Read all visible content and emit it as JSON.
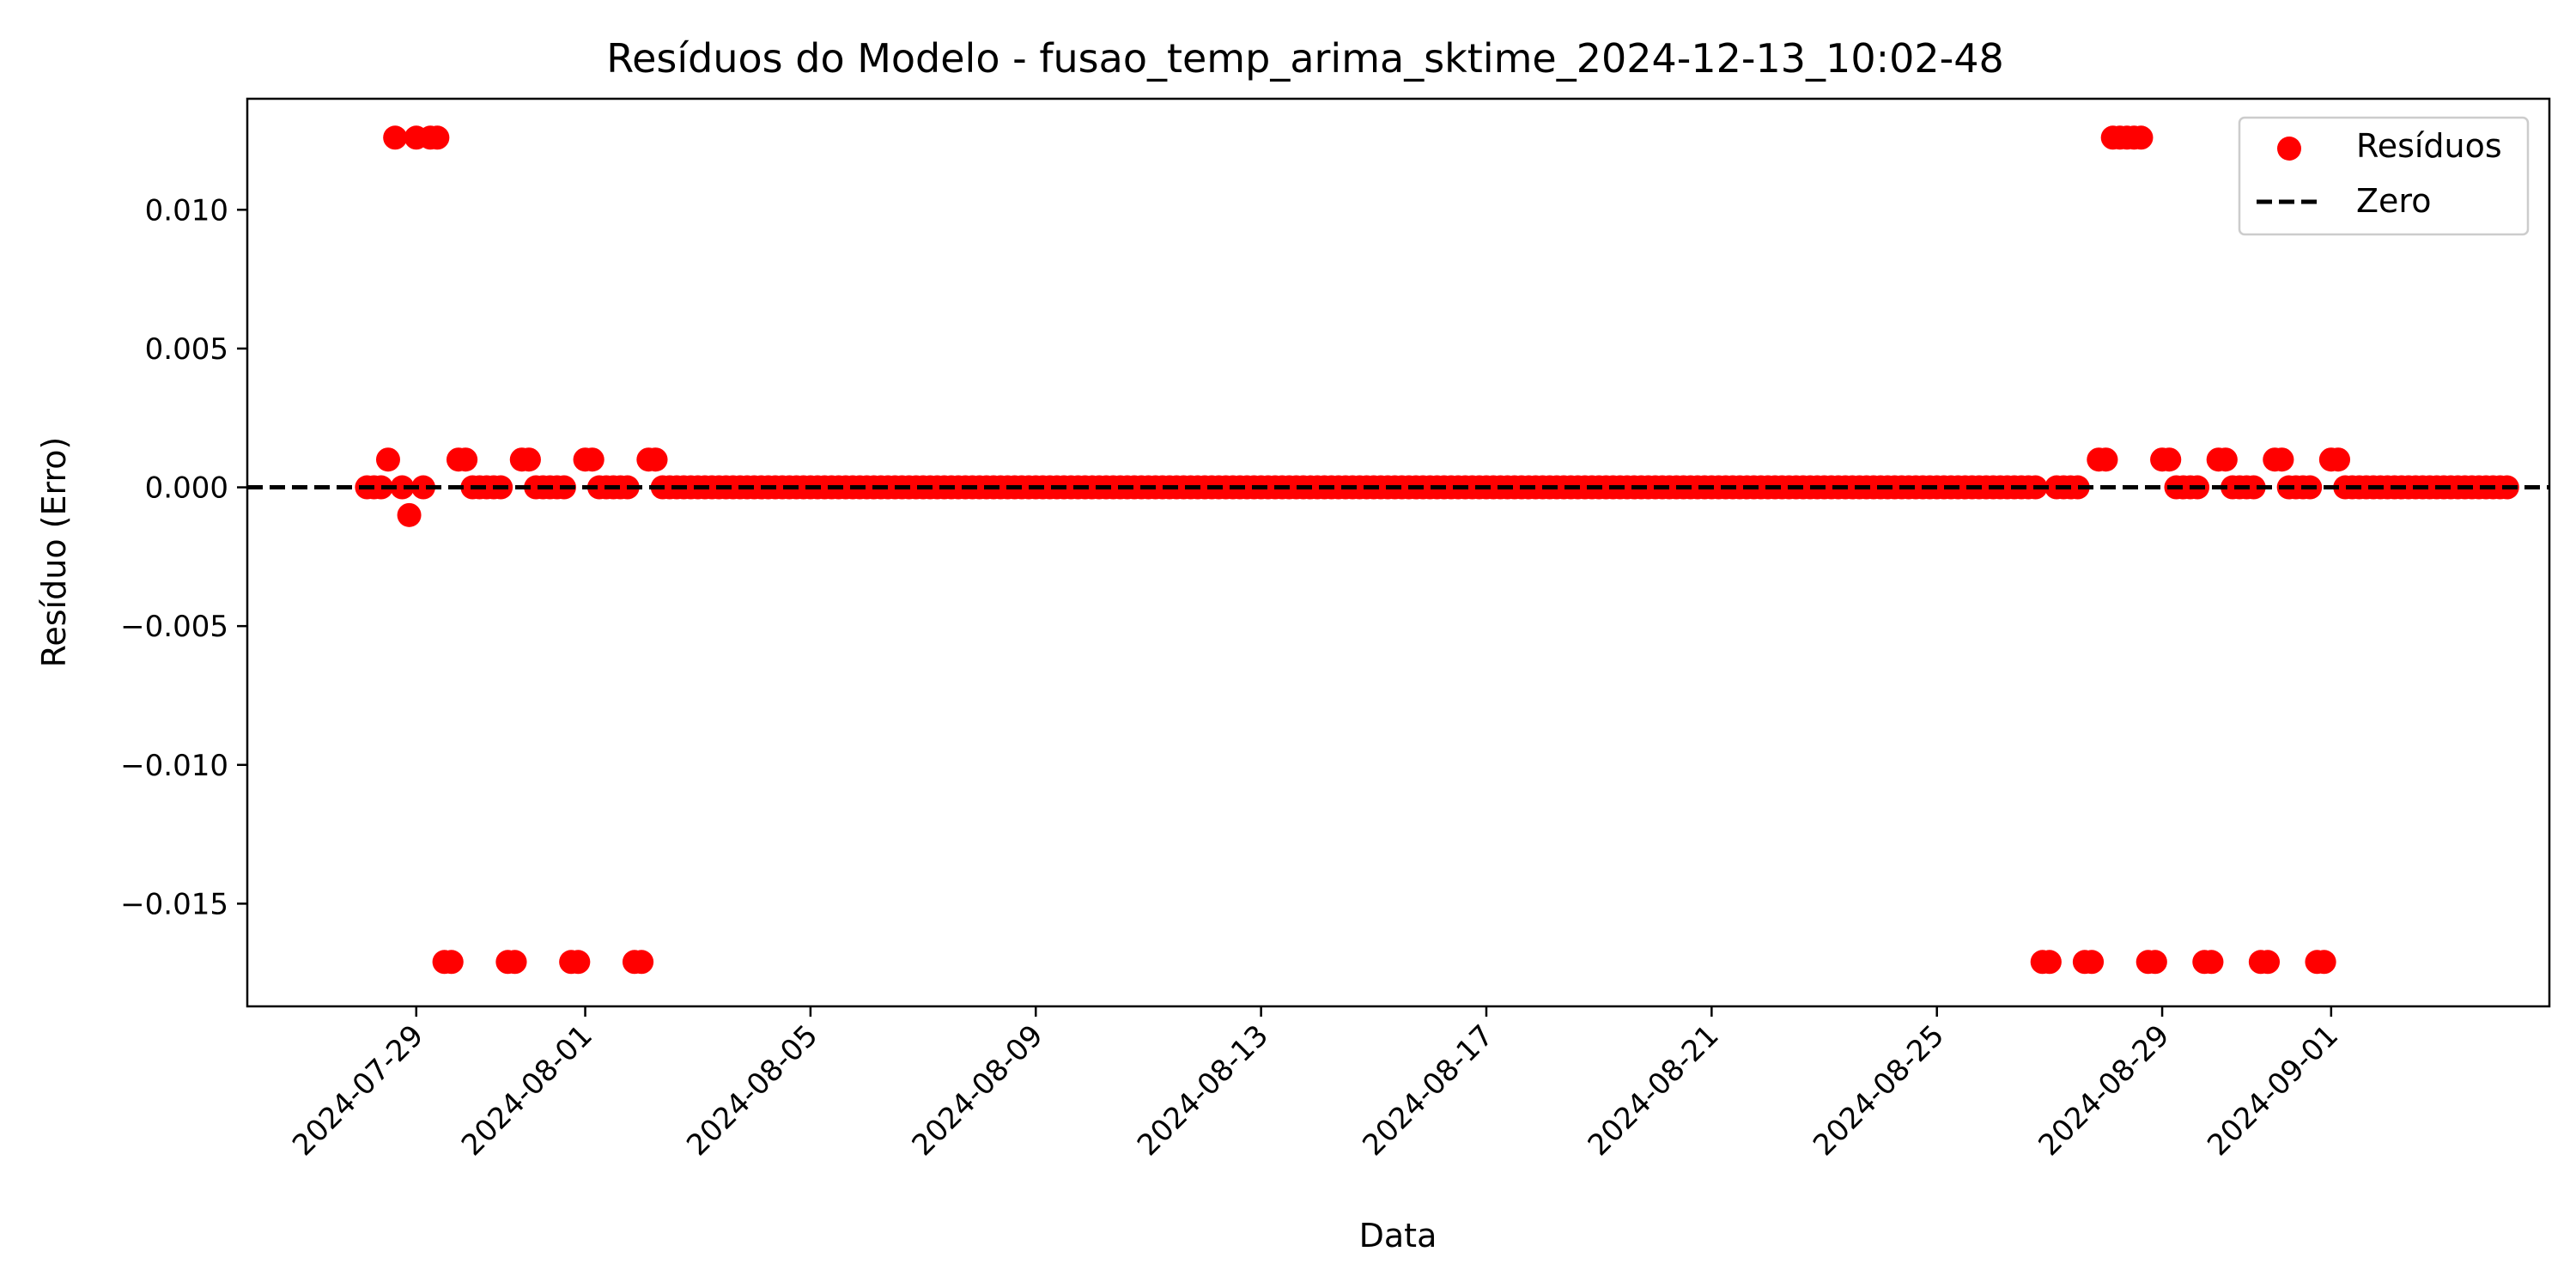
{
  "chart_data": {
    "type": "scatter",
    "title": "Resíduos do Modelo - fusao_temp_arima_sktime_2024-12-13_10:02-48",
    "xlabel": "Data",
    "ylabel": "Resíduo (Erro)",
    "xlim": [
      "2024-07-26T00:00",
      "2024-09-04T21:00"
    ],
    "ylim": [
      -0.0187,
      0.014
    ],
    "grid": false,
    "legend": {
      "placement": "top-right",
      "entries": [
        "Resíduos",
        "Zero"
      ]
    },
    "x_ticks": [
      "2024-07-29",
      "2024-08-01",
      "2024-08-05",
      "2024-08-09",
      "2024-08-13",
      "2024-08-17",
      "2024-08-21",
      "2024-08-25",
      "2024-08-29",
      "2024-09-01"
    ],
    "y_ticks": [
      {
        "value": 0.01,
        "label": "0.010"
      },
      {
        "value": 0.005,
        "label": "0.005"
      },
      {
        "value": 0.0,
        "label": "0.000"
      },
      {
        "value": -0.005,
        "label": "−0.005"
      },
      {
        "value": -0.01,
        "label": "−0.010"
      },
      {
        "value": -0.015,
        "label": "−0.015"
      }
    ],
    "reference_line": {
      "name": "Zero",
      "y": 0,
      "style": "dashed",
      "color": "#000000"
    },
    "series": [
      {
        "name": "Resíduos",
        "color": "#ff0000",
        "sampling_hours": 3,
        "segments": [
          {
            "start": "2024-07-28T03:00",
            "values": [
              0.0,
              0.0,
              0.0,
              0.001,
              0.0126,
              0.0,
              -0.001,
              0.0126,
              0.0,
              0.0126,
              0.0126,
              -0.0171,
              -0.0171,
              0.001,
              0.001,
              0.0,
              0.0,
              0.0,
              0.0,
              0.0,
              -0.0171,
              -0.0171,
              0.001,
              0.001,
              0.0,
              0.0,
              0.0,
              0.0,
              0.0,
              -0.0171,
              -0.0171,
              0.001,
              0.001,
              0.0,
              0.0,
              0.0,
              0.0,
              0.0,
              -0.0171,
              -0.0171,
              0.001,
              0.001,
              0.0
            ],
            "fill": 0.0,
            "fill_until": "2024-08-26T18:00"
          },
          {
            "start": "2024-08-26T21:00",
            "values": [
              -0.0171,
              -0.0171,
              0.0,
              0.0,
              0.0,
              0.0,
              -0.0171,
              -0.0171,
              0.001,
              0.001,
              0.0126,
              0.0126,
              0.0126,
              0.0126,
              0.0126,
              -0.0171,
              -0.0171,
              0.001,
              0.001,
              0.0,
              0.0,
              0.0,
              0.0,
              -0.0171,
              -0.0171,
              0.001,
              0.001,
              0.0,
              0.0,
              0.0,
              0.0,
              -0.0171,
              -0.0171,
              0.001,
              0.001,
              0.0,
              0.0,
              0.0,
              0.0,
              -0.0171,
              -0.0171,
              0.001,
              0.001,
              0.0
            ],
            "fill": 0.0,
            "fill_until": "2024-09-04T03:00"
          }
        ]
      }
    ]
  }
}
